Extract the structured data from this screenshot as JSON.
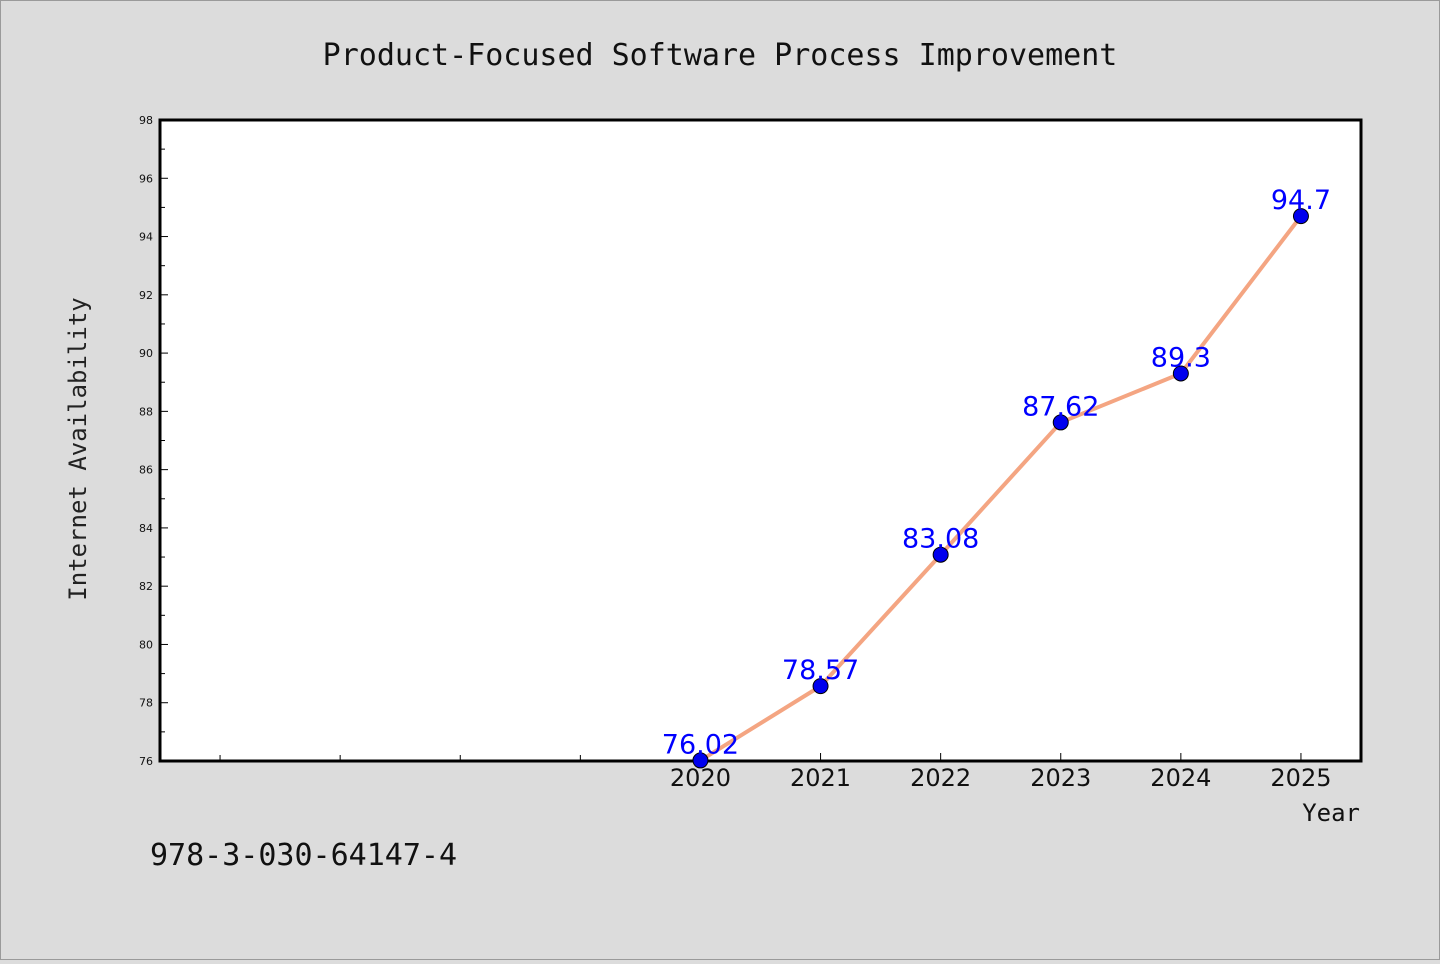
{
  "chart_data": {
    "type": "line",
    "title": "Product-Focused Software Process Improvement",
    "xlabel": "Year",
    "ylabel": "Internet Availability",
    "x": [
      2020,
      2021,
      2022,
      2023,
      2024,
      2025
    ],
    "series": [
      {
        "values": [
          76.02,
          78.57,
          83.08,
          87.62,
          89.3,
          94.7
        ]
      }
    ],
    "data_labels": [
      "76.02",
      "78.57",
      "83.08",
      "87.62",
      "89.3",
      "94.7"
    ],
    "ylim": [
      76,
      98
    ],
    "yticks": [
      76,
      78,
      80,
      82,
      84,
      86,
      88,
      90,
      92,
      94,
      96,
      98
    ],
    "xlim": [
      2015.5,
      2025.5
    ],
    "xticks_labeled": [
      2020,
      2021,
      2022,
      2023,
      2024,
      2025
    ],
    "xticks_minor": [
      2016,
      2017,
      2018,
      2019
    ],
    "grid": false,
    "line_color": "#f4a582",
    "marker_color": "#0000ee",
    "label_color": "#0000ff"
  },
  "annotation": "978-3-030-64147-4"
}
